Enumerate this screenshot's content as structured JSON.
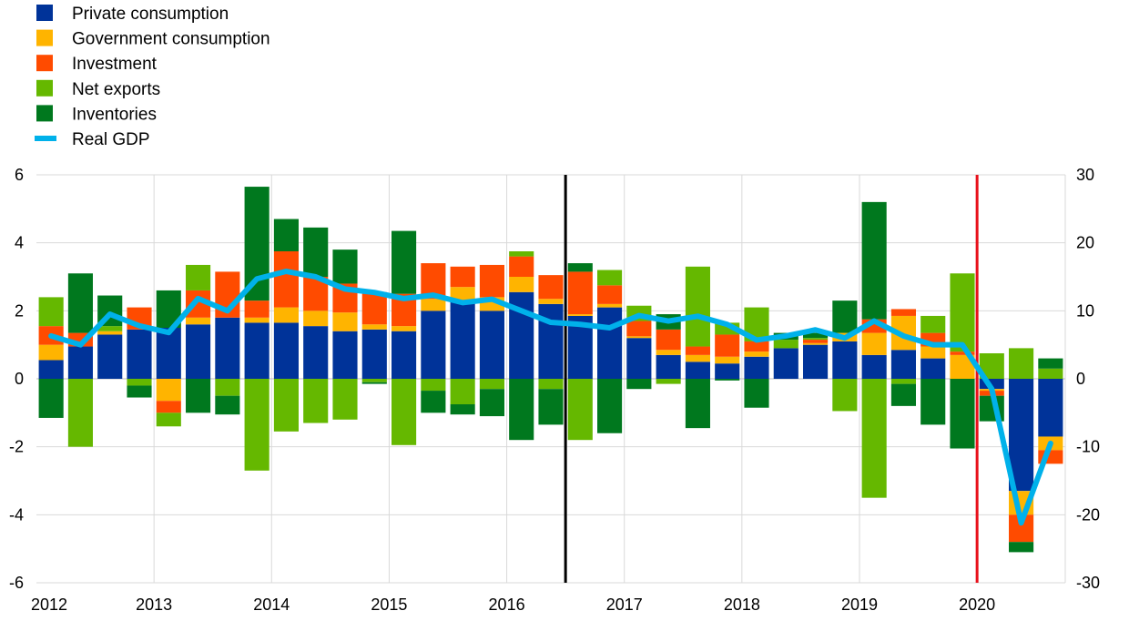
{
  "chart_data": {
    "type": "bar",
    "stacked": true,
    "x_tick_labels": [
      "2012",
      "2013",
      "2014",
      "2015",
      "2016",
      "2017",
      "2018",
      "2019",
      "2020"
    ],
    "ylim_left": [
      -6,
      6
    ],
    "ylim_right": [
      -30,
      30
    ],
    "yticks_left": [
      "6",
      "4",
      "2",
      "0",
      "-2",
      "-4",
      "-6"
    ],
    "yticks_right": [
      "30",
      "20",
      "10",
      "0",
      "-10",
      "-20",
      "-30"
    ],
    "grid": true,
    "legend_position": "top-left",
    "vertical_markers": [
      {
        "after_index": 17,
        "color": "#000000"
      },
      {
        "after_index": 31,
        "color": "#e8101a"
      }
    ],
    "series": [
      {
        "name": "Private consumption",
        "color": "#003399",
        "values": [
          0.55,
          0.95,
          1.3,
          1.45,
          1.5,
          1.6,
          1.8,
          1.65,
          1.65,
          1.55,
          1.4,
          1.45,
          1.4,
          2.0,
          2.25,
          2.0,
          2.55,
          2.2,
          1.85,
          2.1,
          1.2,
          0.7,
          0.5,
          0.45,
          0.65,
          0.9,
          1.0,
          1.1,
          0.7,
          0.85,
          0.6,
          -0.0,
          -0.3,
          -3.3,
          -1.7
        ]
      },
      {
        "name": "Government consumption",
        "color": "#ffb400",
        "values": [
          0.45,
          0.0,
          0.1,
          0.0,
          -0.65,
          0.2,
          0.0,
          0.15,
          0.45,
          0.45,
          0.55,
          0.15,
          0.15,
          0.35,
          0.45,
          0.4,
          0.45,
          0.15,
          0.05,
          0.1,
          0.05,
          0.15,
          0.2,
          0.2,
          0.15,
          0.0,
          0.05,
          0.25,
          0.65,
          1.0,
          0.35,
          0.7,
          -0.05,
          -0.7,
          -0.4
        ]
      },
      {
        "name": "Investment",
        "color": "#ff4b00",
        "values": [
          0.55,
          0.4,
          0.0,
          0.65,
          -0.35,
          0.8,
          1.35,
          0.5,
          1.65,
          1.0,
          0.85,
          0.95,
          0.95,
          1.05,
          0.6,
          0.95,
          0.6,
          0.7,
          1.25,
          0.55,
          0.45,
          0.6,
          0.25,
          0.65,
          0.3,
          0.0,
          0.1,
          0.0,
          0.4,
          0.2,
          0.4,
          0.1,
          -0.15,
          -0.8,
          -0.4
        ]
      },
      {
        "name": "Net exports",
        "color": "#65b800",
        "values": [
          0.85,
          -2.0,
          0.15,
          -0.2,
          -0.4,
          0.75,
          -0.5,
          -2.7,
          -1.55,
          -1.3,
          -1.2,
          -0.1,
          -1.95,
          -0.35,
          -0.75,
          -0.3,
          0.15,
          -0.3,
          -1.8,
          0.45,
          0.45,
          -0.15,
          2.35,
          0.35,
          1.0,
          0.25,
          0.05,
          -0.95,
          -3.5,
          -0.15,
          0.5,
          2.3,
          0.75,
          0.9,
          0.3
        ]
      },
      {
        "name": "Inventories",
        "color": "#00781e",
        "values": [
          -1.15,
          1.75,
          0.9,
          -0.35,
          1.1,
          -1.0,
          -0.55,
          3.35,
          0.95,
          1.45,
          1.0,
          -0.05,
          1.85,
          -0.65,
          -0.3,
          -0.8,
          -1.8,
          -1.05,
          0.25,
          -1.6,
          -0.3,
          0.45,
          -1.45,
          -0.05,
          -0.85,
          0.2,
          0.15,
          0.95,
          3.45,
          -0.65,
          -1.35,
          -2.05,
          -0.75,
          -0.3,
          0.3
        ]
      },
      {
        "name": "Real GDP",
        "color": "#00b1ea",
        "type": "line",
        "axis": "right",
        "values": [
          6.3,
          5.0,
          9.5,
          7.8,
          6.8,
          11.8,
          10.0,
          14.7,
          15.8,
          15.0,
          13.2,
          12.7,
          11.8,
          12.3,
          11.2,
          11.7,
          10.0,
          8.3,
          8.0,
          7.5,
          9.3,
          8.5,
          9.2,
          8.0,
          5.7,
          6.3,
          7.2,
          6.0,
          8.5,
          6.3,
          5.0,
          5.0,
          -1.5,
          -21.2,
          -9.5
        ]
      }
    ]
  }
}
